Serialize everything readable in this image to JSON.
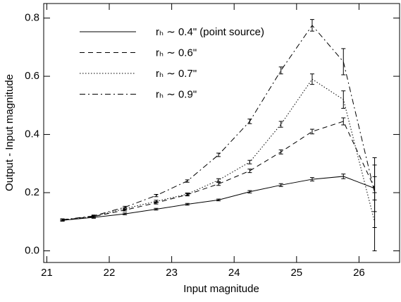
{
  "chart_data": {
    "type": "errorbar-line",
    "x_label": "Input magnitude",
    "y_label": "Output - Input magnitude",
    "x": [
      21.25,
      21.75,
      22.25,
      22.75,
      23.25,
      23.75,
      24.25,
      24.75,
      25.25,
      25.75,
      26.25
    ],
    "xlim": [
      20.95,
      26.65
    ],
    "xticks": [
      21,
      22,
      23,
      24,
      25,
      26
    ],
    "ylim": [
      -0.04,
      0.85
    ],
    "yticks": [
      {
        "value": 0,
        "label": "0.0"
      },
      0.2,
      0.4,
      0.6,
      0.8
    ],
    "legend": "upper left",
    "series": [
      {
        "name": "rₕ ∼ 0.4\" (point source)",
        "color": "#000000",
        "dash": "solid",
        "values": [
          0.105,
          0.115,
          0.127,
          0.143,
          0.16,
          0.175,
          0.203,
          0.226,
          0.246,
          0.256,
          0.215
        ],
        "errors": [
          0.003,
          0.003,
          0.003,
          0.003,
          0.003,
          0.003,
          0.004,
          0.005,
          0.006,
          0.008,
          0.04
        ]
      },
      {
        "name": "rₕ ∼ 0.6\"",
        "color": "#000000",
        "dash": "dashed",
        "values": [
          0.106,
          0.118,
          0.14,
          0.165,
          0.193,
          0.23,
          0.275,
          0.34,
          0.41,
          0.445,
          0.215
        ],
        "errors": [
          0.003,
          0.003,
          0.003,
          0.004,
          0.004,
          0.005,
          0.006,
          0.007,
          0.008,
          0.012,
          0.08
        ]
      },
      {
        "name": "rₕ ∼ 0.7\"",
        "color": "#000000",
        "dash": "dotted",
        "values": [
          0.106,
          0.118,
          0.145,
          0.17,
          0.195,
          0.243,
          0.305,
          0.435,
          0.59,
          0.52,
          0.1
        ],
        "errors": [
          0.003,
          0.003,
          0.003,
          0.004,
          0.004,
          0.005,
          0.006,
          0.01,
          0.018,
          0.03,
          0.1
        ]
      },
      {
        "name": "rₕ ∼ 0.9\"",
        "color": "#000000",
        "dash": "dashdot",
        "values": [
          0.107,
          0.12,
          0.15,
          0.19,
          0.24,
          0.33,
          0.445,
          0.62,
          0.775,
          0.65,
          0.2
        ],
        "errors": [
          0.003,
          0.003,
          0.003,
          0.004,
          0.004,
          0.006,
          0.008,
          0.012,
          0.02,
          0.045,
          0.12
        ]
      }
    ]
  }
}
